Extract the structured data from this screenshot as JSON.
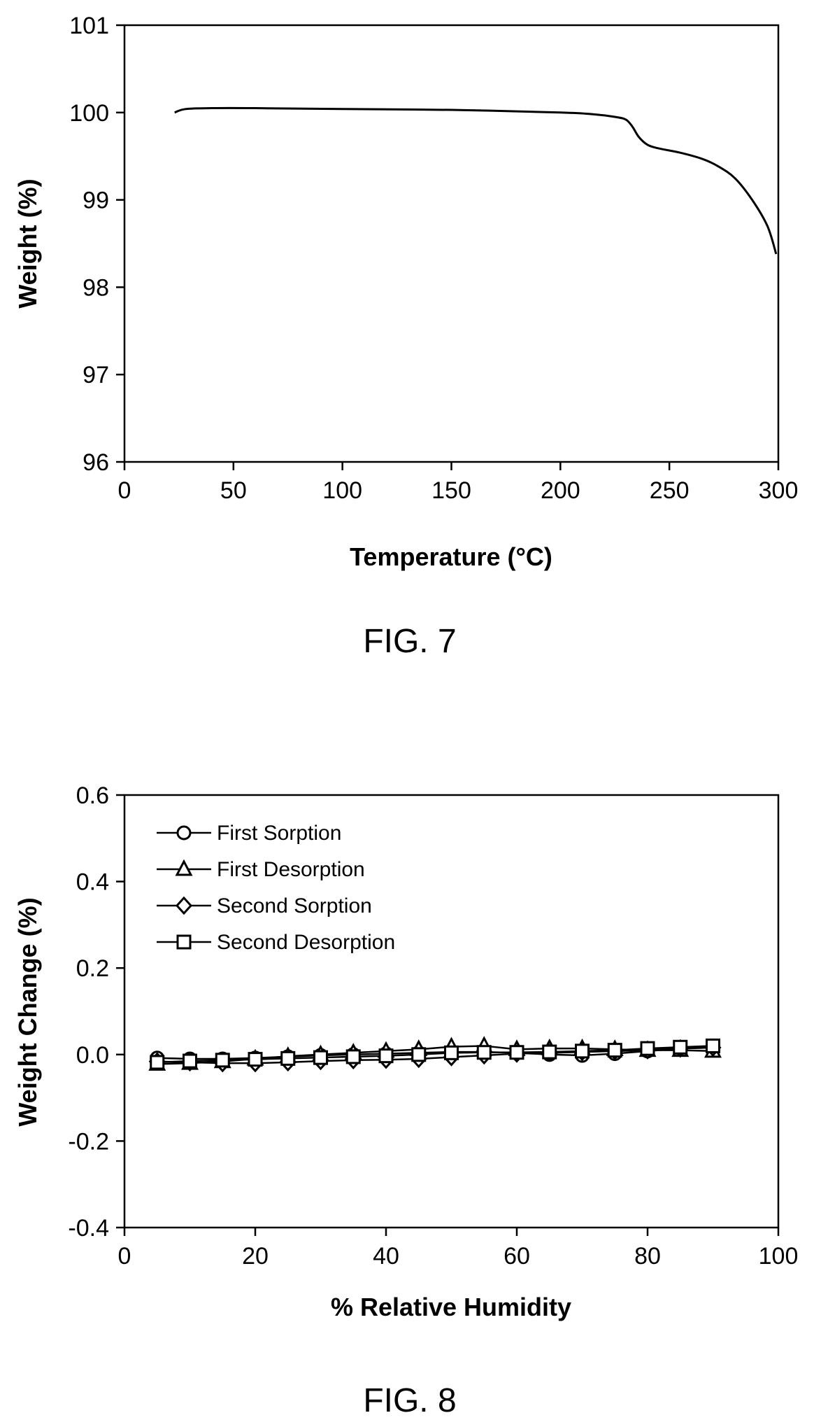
{
  "figures": [
    {
      "caption": "FIG. 7",
      "chart_data": {
        "type": "line",
        "xlabel": "Temperature (°C)",
        "ylabel": "Weight (%)",
        "xlim": [
          0,
          300
        ],
        "ylim": [
          96,
          101
        ],
        "xticks": [
          0,
          50,
          100,
          150,
          200,
          250,
          300
        ],
        "yticks": [
          96,
          97,
          98,
          99,
          100,
          101
        ],
        "grid": false,
        "series": [
          {
            "x": [
              23,
              28,
              40,
              60,
              100,
              150,
              200,
              215,
              225,
              230,
              233,
              236,
              240,
              245,
              255,
              265,
              272,
              280,
              288,
              295,
              299
            ],
            "y": [
              100.0,
              100.04,
              100.05,
              100.05,
              100.04,
              100.03,
              100.0,
              99.98,
              99.95,
              99.92,
              99.84,
              99.72,
              99.63,
              99.59,
              99.54,
              99.47,
              99.39,
              99.25,
              99.0,
              98.7,
              98.38
            ]
          }
        ]
      }
    },
    {
      "caption": "FIG. 8",
      "chart_data": {
        "type": "line",
        "xlabel": "% Relative Humidity",
        "ylabel": "Weight Change (%)",
        "xlim": [
          0,
          100
        ],
        "ylim": [
          -0.4,
          0.6
        ],
        "xticks": [
          0,
          20,
          40,
          60,
          80,
          100
        ],
        "yticks": [
          -0.4,
          -0.2,
          0.0,
          0.2,
          0.4,
          0.6
        ],
        "ytick_labels": [
          "-0.4",
          "-0.2",
          "0.0",
          "0.2",
          "0.4",
          "0.6"
        ],
        "grid": false,
        "legend_position": "top-left",
        "series": [
          {
            "name": "First Sorption",
            "marker": "circle",
            "x": [
              5,
              10,
              15,
              20,
              25,
              30,
              35,
              40,
              45,
              50,
              55,
              60,
              65,
              70,
              75,
              80,
              85,
              90
            ],
            "y": [
              -0.008,
              -0.01,
              -0.01,
              -0.008,
              -0.005,
              -0.002,
              0.0,
              0.002,
              0.004,
              0.006,
              0.006,
              0.004,
              0.0,
              -0.002,
              0.002,
              0.008,
              0.014,
              0.016
            ]
          },
          {
            "name": "First Desorption",
            "marker": "triangle",
            "x": [
              90,
              85,
              80,
              75,
              70,
              65,
              60,
              55,
              50,
              45,
              40,
              35,
              30,
              25,
              20,
              15,
              10,
              5
            ],
            "y": [
              0.008,
              0.01,
              0.01,
              0.012,
              0.014,
              0.014,
              0.012,
              0.02,
              0.018,
              0.012,
              0.008,
              0.004,
              0.0,
              -0.004,
              -0.01,
              -0.016,
              -0.02,
              -0.022
            ]
          },
          {
            "name": "Second Sorption",
            "marker": "diamond",
            "x": [
              5,
              10,
              15,
              20,
              25,
              30,
              35,
              40,
              45,
              50,
              55,
              60,
              65,
              70,
              75,
              80,
              85,
              90
            ],
            "y": [
              -0.016,
              -0.018,
              -0.02,
              -0.02,
              -0.018,
              -0.015,
              -0.013,
              -0.012,
              -0.01,
              -0.006,
              -0.002,
              0.002,
              0.004,
              0.006,
              0.008,
              0.01,
              0.014,
              0.016
            ]
          },
          {
            "name": "Second Desorption",
            "marker": "square",
            "x": [
              90,
              85,
              80,
              75,
              70,
              65,
              60,
              55,
              50,
              45,
              40,
              35,
              30,
              25,
              20,
              15,
              10,
              5
            ],
            "y": [
              0.02,
              0.017,
              0.014,
              0.01,
              0.008,
              0.006,
              0.005,
              0.005,
              0.004,
              0.0,
              -0.003,
              -0.005,
              -0.007,
              -0.009,
              -0.011,
              -0.013,
              -0.015,
              -0.018
            ]
          }
        ]
      }
    }
  ]
}
